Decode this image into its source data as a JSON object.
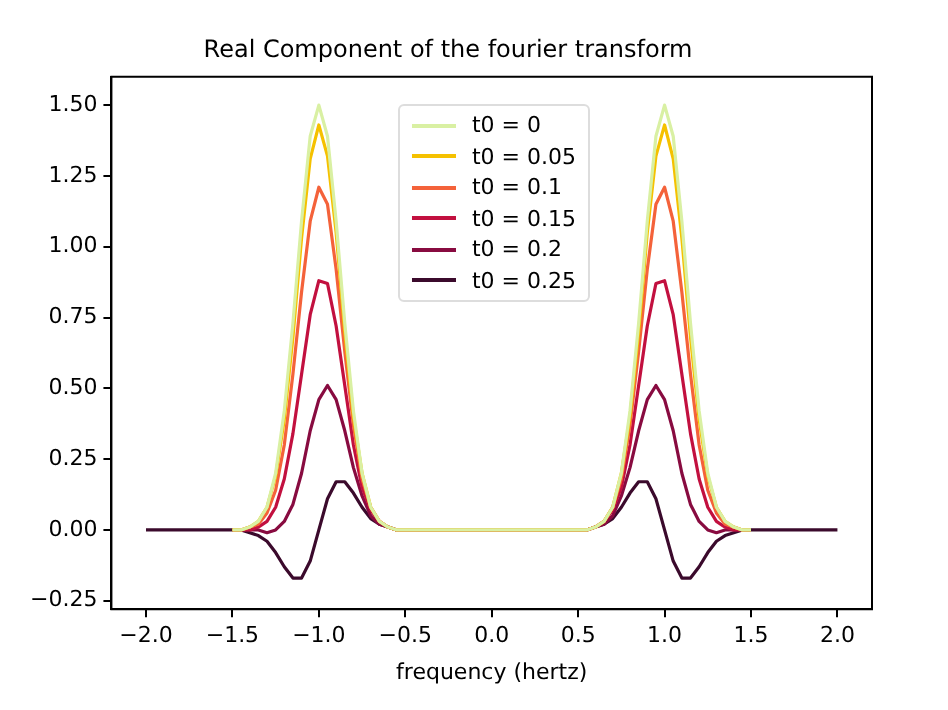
{
  "chart_data": {
    "type": "line",
    "title": "Real Component of the fourier transform",
    "xlabel": "frequency (hertz)",
    "x": [
      -2,
      -1.6,
      -1.5,
      -1.45,
      -1.4,
      -1.35,
      -1.3,
      -1.25,
      -1.2,
      -1.15,
      -1.1,
      -1.05,
      -1,
      -0.95,
      -0.9,
      -0.85,
      -0.8,
      -0.75,
      -0.7,
      -0.65,
      -0.6,
      -0.55,
      -0.5,
      -0.4,
      0,
      0.4,
      0.5,
      0.55,
      0.6,
      0.65,
      0.7,
      0.75,
      0.8,
      0.85,
      0.9,
      0.95,
      1,
      1.05,
      1.1,
      1.15,
      1.2,
      1.25,
      1.3,
      1.35,
      1.4,
      1.45,
      1.5,
      1.6,
      2
    ],
    "series": [
      {
        "name": "t0 = 0",
        "color": "#d9f0a3",
        "values": [
          null,
          null,
          0,
          0,
          0.01,
          0.03,
          0.08,
          0.2,
          0.42,
          0.73,
          1.09,
          1.39,
          1.5,
          1.39,
          1.09,
          0.73,
          0.42,
          0.2,
          0.08,
          0.03,
          0.01,
          0,
          0,
          0,
          0,
          0,
          0,
          0,
          0.01,
          0.03,
          0.08,
          0.2,
          0.42,
          0.73,
          1.09,
          1.39,
          1.5,
          1.39,
          1.09,
          0.73,
          0.42,
          0.2,
          0.08,
          0.03,
          0.01,
          0,
          0,
          null,
          null
        ]
      },
      {
        "name": "t0 = 0.05",
        "color": "#f5c100",
        "values": [
          null,
          null,
          0,
          0,
          0.01,
          0.03,
          0.08,
          0.19,
          0.39,
          0.68,
          1.03,
          1.31,
          1.43,
          1.32,
          1.05,
          0.7,
          0.4,
          0.2,
          0.08,
          0.03,
          0.01,
          0,
          0,
          0,
          0,
          0,
          0,
          0,
          0.01,
          0.03,
          0.08,
          0.2,
          0.4,
          0.7,
          1.05,
          1.32,
          1.43,
          1.31,
          1.03,
          0.68,
          0.39,
          0.19,
          0.08,
          0.03,
          0.01,
          0,
          0,
          null,
          null
        ]
      },
      {
        "name": "t0 = 0.1",
        "color": "#f4623a",
        "values": [
          null,
          null,
          0,
          0,
          0.01,
          0.02,
          0.06,
          0.14,
          0.3,
          0.55,
          0.84,
          1.09,
          1.21,
          1.15,
          0.92,
          0.63,
          0.37,
          0.18,
          0.08,
          0.03,
          0.01,
          0,
          0,
          0,
          0,
          0,
          0,
          0,
          0.01,
          0.03,
          0.08,
          0.18,
          0.37,
          0.63,
          0.92,
          1.15,
          1.21,
          1.09,
          0.84,
          0.55,
          0.3,
          0.14,
          0.06,
          0.02,
          0.01,
          0,
          0,
          null,
          null
        ]
      },
      {
        "name": "t0 = 0.15",
        "color": "#c2103f",
        "values": [
          null,
          null,
          0,
          0,
          0,
          0.01,
          0.03,
          0.08,
          0.18,
          0.34,
          0.55,
          0.76,
          0.88,
          0.87,
          0.72,
          0.51,
          0.3,
          0.15,
          0.07,
          0.03,
          0.01,
          0,
          0,
          0,
          0,
          0,
          0,
          0,
          0.01,
          0.03,
          0.07,
          0.15,
          0.3,
          0.51,
          0.72,
          0.87,
          0.88,
          0.76,
          0.55,
          0.34,
          0.18,
          0.08,
          0.03,
          0.01,
          0,
          0,
          0,
          null,
          null
        ]
      },
      {
        "name": "t0 = 0.2",
        "color": "#880b40",
        "values": [
          null,
          null,
          0,
          0,
          0,
          0,
          -0.01,
          0,
          0.03,
          0.09,
          0.2,
          0.35,
          0.46,
          0.51,
          0.46,
          0.35,
          0.22,
          0.12,
          0.05,
          0.02,
          0.01,
          0,
          0,
          0,
          0,
          0,
          0,
          0,
          0.01,
          0.02,
          0.05,
          0.12,
          0.22,
          0.35,
          0.46,
          0.51,
          0.46,
          0.35,
          0.2,
          0.09,
          0.03,
          0,
          -0.01,
          0,
          0,
          0,
          0,
          null,
          null
        ]
      },
      {
        "name": "t0 = 0.25",
        "color": "#3b0a2c",
        "values": [
          0,
          0,
          0,
          0,
          -0.01,
          -0.02,
          -0.04,
          -0.08,
          -0.13,
          -0.17,
          -0.17,
          -0.11,
          0,
          0.11,
          0.17,
          0.17,
          0.13,
          0.08,
          0.04,
          0.02,
          0.01,
          0,
          0,
          0,
          0,
          0,
          0,
          0,
          0.01,
          0.02,
          0.04,
          0.08,
          0.13,
          0.17,
          0.17,
          0.11,
          0,
          -0.11,
          -0.17,
          -0.17,
          -0.13,
          -0.08,
          -0.04,
          -0.02,
          -0.01,
          0,
          0,
          0,
          0
        ]
      }
    ],
    "xlim": [
      -2.2,
      2.2
    ],
    "xticks": [
      {
        "value": -2,
        "label": "−2.0"
      },
      {
        "value": -1.5,
        "label": "−1.5"
      },
      {
        "value": -1,
        "label": "−1.0"
      },
      {
        "value": -0.5,
        "label": "−0.5"
      },
      {
        "value": 0,
        "label": "0.0"
      },
      {
        "value": 0.5,
        "label": "0.5"
      },
      {
        "value": 1,
        "label": "1.0"
      },
      {
        "value": 1.5,
        "label": "1.5"
      },
      {
        "value": 2,
        "label": "2.0"
      }
    ],
    "ylim": [
      -0.28,
      1.6
    ],
    "yticks": [
      {
        "value": -0.25,
        "label": "−0.25"
      },
      {
        "value": 0,
        "label": "0.00"
      },
      {
        "value": 0.25,
        "label": "0.25"
      },
      {
        "value": 0.5,
        "label": "0.50"
      },
      {
        "value": 0.75,
        "label": "0.75"
      },
      {
        "value": 1,
        "label": "1.00"
      },
      {
        "value": 1.25,
        "label": "1.25"
      },
      {
        "value": 1.5,
        "label": "1.50"
      }
    ],
    "grid": false,
    "legend": "top",
    "marker": "none",
    "line_style": "solid"
  }
}
